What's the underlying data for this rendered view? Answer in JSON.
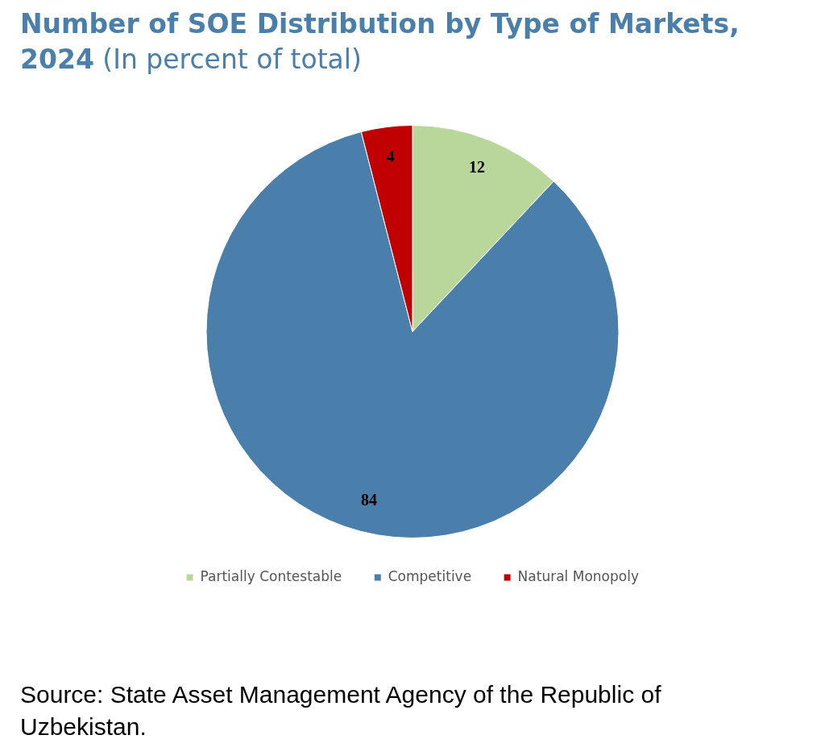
{
  "chart_data": {
    "type": "pie",
    "title": "Number of SOE Distribution by Type of Markets, 2024",
    "subtitle": "(In percent of total)",
    "categories": [
      "Partially Contestable",
      "Competitive",
      "Natural Monopoly"
    ],
    "values": [
      12,
      84,
      4
    ],
    "colors": [
      "#b9d69b",
      "#4a7fab",
      "#c00000"
    ],
    "data_labels": true,
    "legend": "bottom",
    "annotations": [
      "Source: State Asset Management Agency of the Republic of Uzbekistan."
    ]
  }
}
